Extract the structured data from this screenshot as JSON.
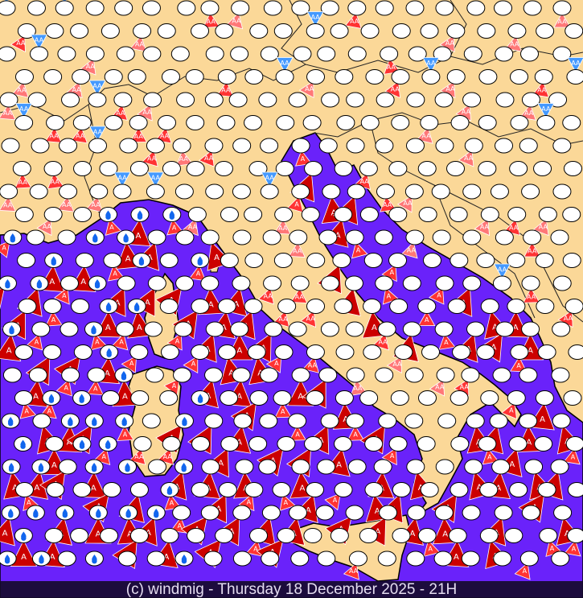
{
  "footer": {
    "caption": "(c) windmig - Thursday 18 December 2025 - 21H"
  },
  "colors": {
    "sea": "#6a22fa",
    "land": "#fbd898",
    "border": "#1a1a1a",
    "station": "#ffffff",
    "arrow_strong": "#cc0000",
    "arrow_moderate": "#ff3333",
    "arrow_light": "#ff7777",
    "arrow_north": "#4499ff",
    "rain_drop": "#1166ee"
  },
  "markers": {
    "arrow_label_single": "A",
    "arrow_label_double": "AA",
    "icons": [
      "calm-station-icon",
      "rain-drop-icon",
      "wind-arrow-icon"
    ]
  }
}
